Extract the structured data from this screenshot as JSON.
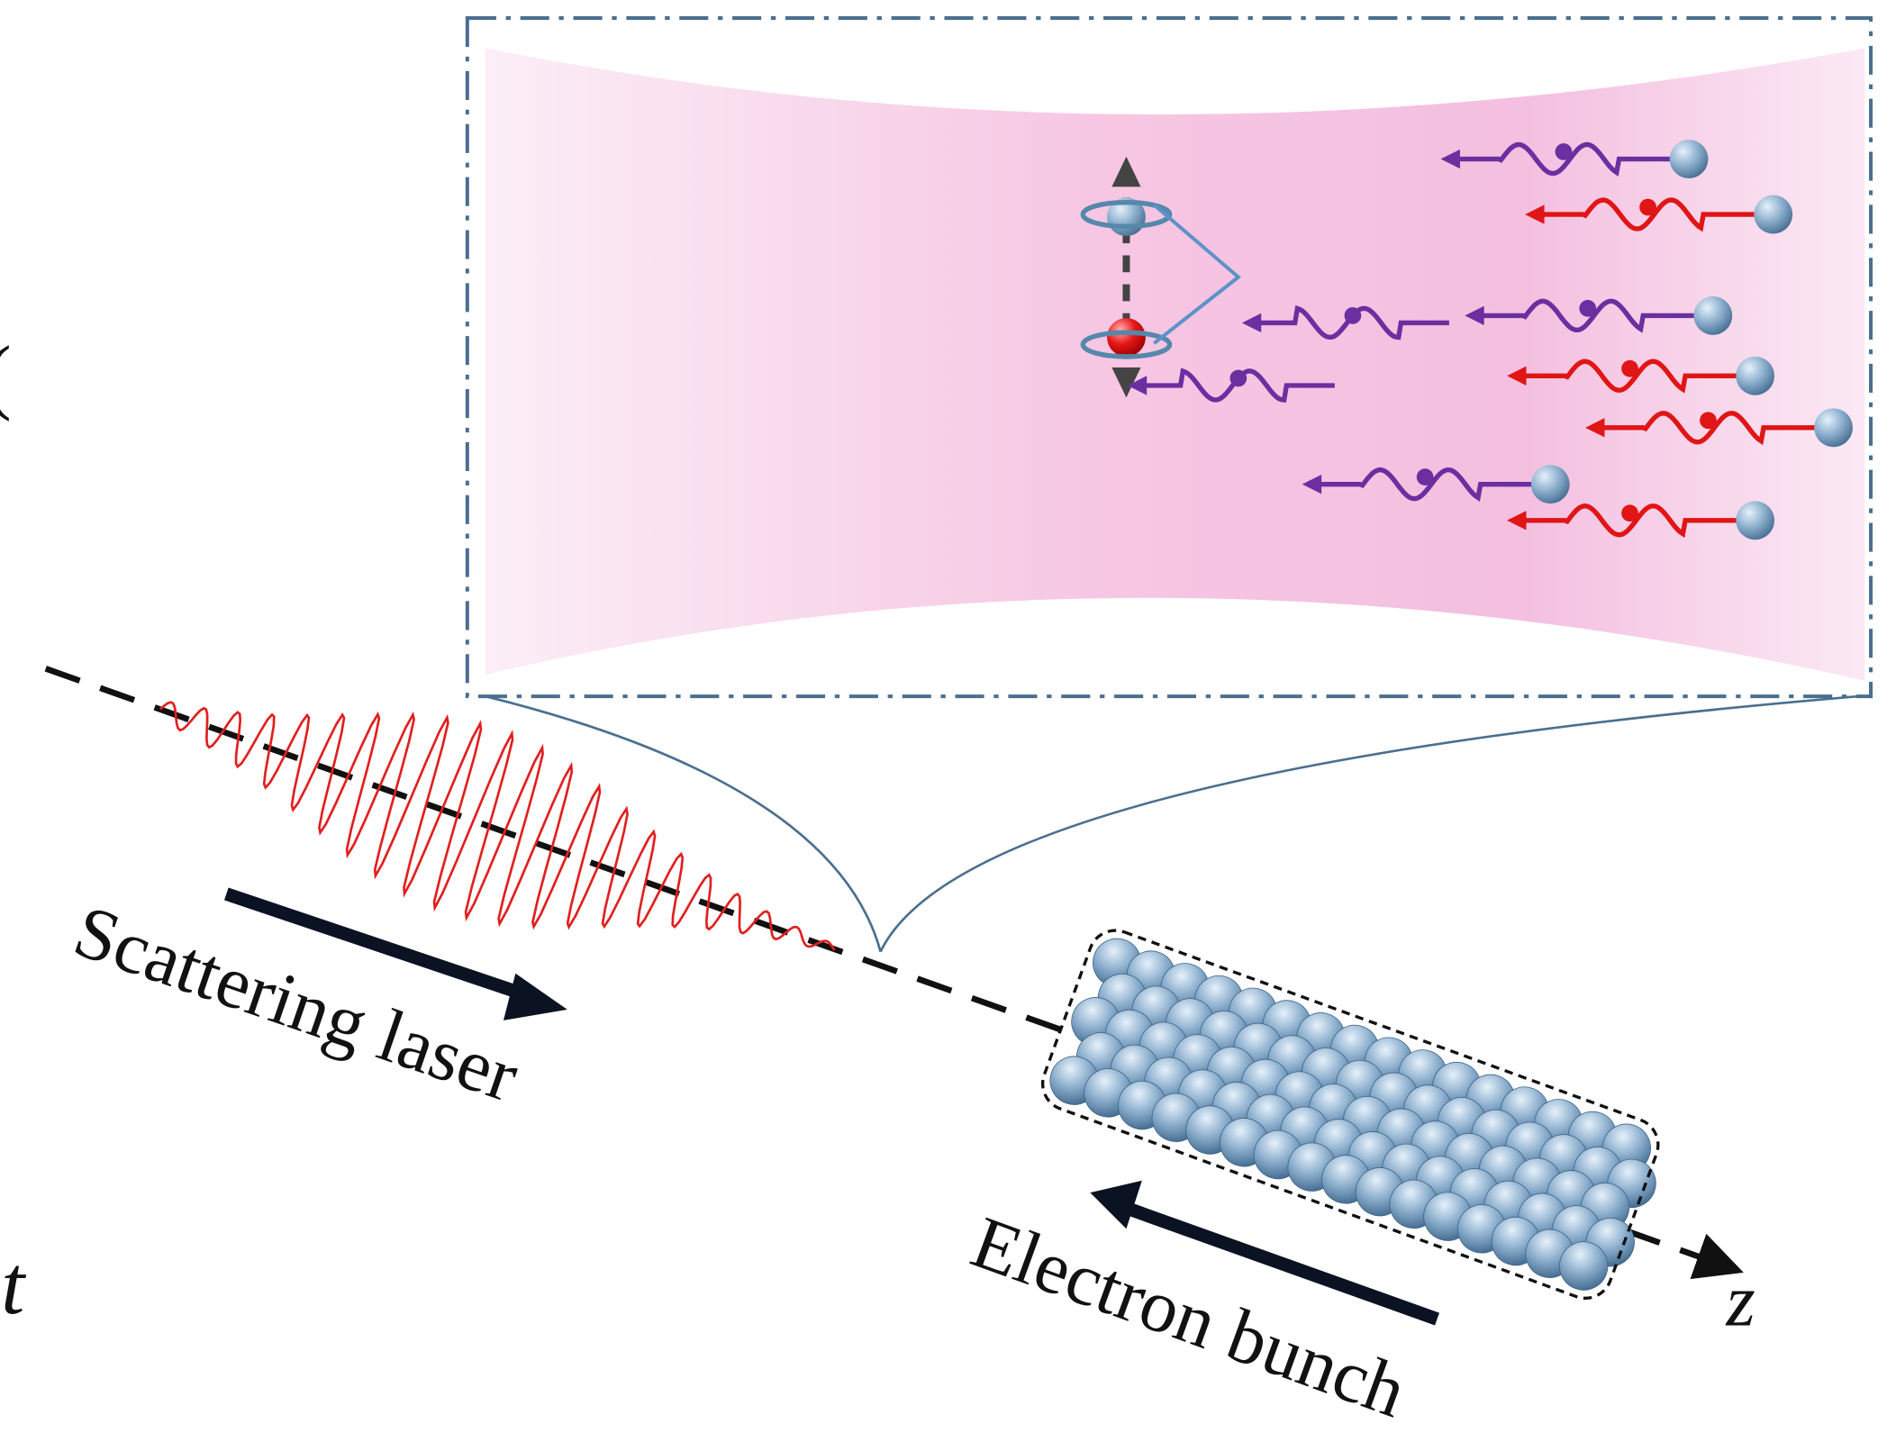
{
  "labels": {
    "laser": "Scattering laser",
    "bunch": "Electron bunch",
    "axis": "z",
    "edge_top": "r(",
    "edge_bottom": "t"
  }
}
